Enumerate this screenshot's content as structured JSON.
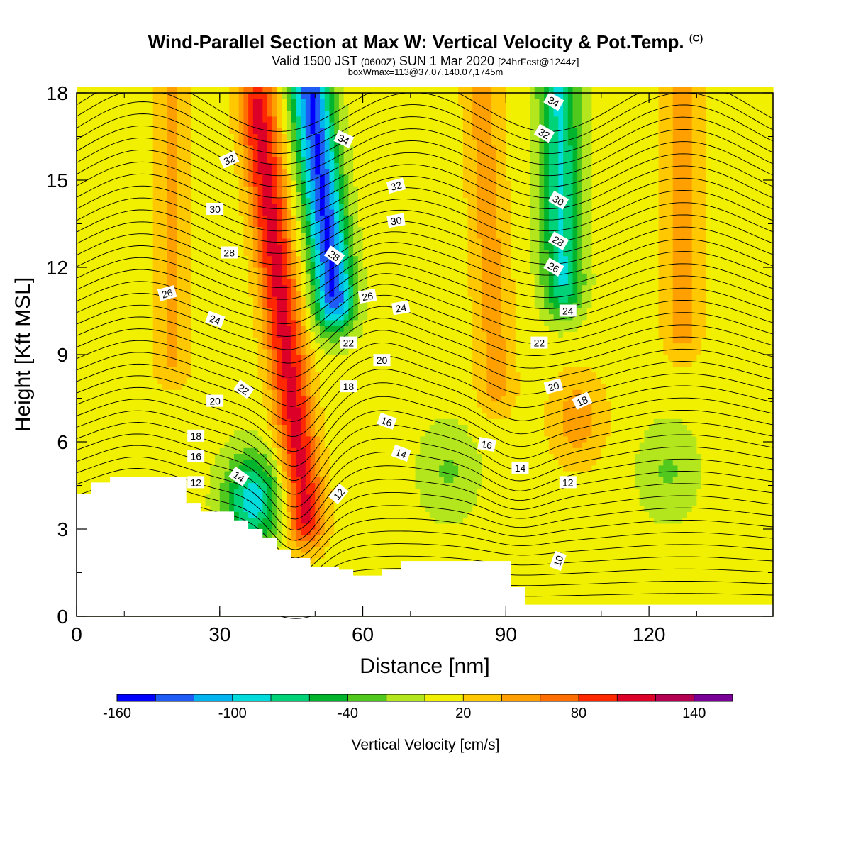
{
  "header": {
    "title": "Wind-Parallel Section at Max W: Vertical Velocity & Pot.Temp.",
    "copyright": "(C)",
    "subtitle_pre": "Valid 1500 JST",
    "subtitle_utc": "(0600Z)",
    "subtitle_mid": "SUN 1 Mar 2020",
    "subtitle_fcst": "[24hrFcst@1244z]",
    "subtitle2": "boxWmax=113@37.07,140.07,1745m"
  },
  "colors": {
    "fill_bins": [
      "#0000ff",
      "#1e5cf5",
      "#00b4f0",
      "#00dcdc",
      "#00d278",
      "#00b42d",
      "#50c81e",
      "#b4e61e",
      "#f0f000",
      "#ffc800",
      "#ffa000",
      "#ff6e00",
      "#ff2800",
      "#dc0028",
      "#b40050",
      "#780096"
    ],
    "terrain": "#ffffff"
  },
  "chart_data": {
    "type": "contour",
    "title": "Wind-Parallel Section at Max W: Vertical Velocity & Pot.Temp.",
    "xlabel": "Distance [nm]",
    "ylabel": "Height [Kft MSL]",
    "xlim": [
      0,
      146
    ],
    "ylim": [
      0,
      18
    ],
    "x_ticks": [
      "0",
      "30",
      "60",
      "90",
      "120"
    ],
    "x_tick_values": [
      0,
      30,
      60,
      90,
      120
    ],
    "y_ticks": [
      "0",
      "3",
      "6",
      "9",
      "12",
      "15",
      "18"
    ],
    "y_tick_values": [
      0,
      3,
      6,
      9,
      12,
      15,
      18
    ],
    "colorbar": {
      "label": "Vertical Velocity [cm/s]",
      "tick_labels": [
        "-160",
        "-100",
        "-40",
        "20",
        "80",
        "140"
      ],
      "tick_values": [
        -160,
        -100,
        -40,
        20,
        80,
        140
      ],
      "bin_edges": [
        -160,
        -140,
        -120,
        -100,
        -80,
        -60,
        -40,
        -20,
        0,
        20,
        40,
        60,
        80,
        100,
        120,
        140,
        160
      ]
    },
    "terrain_profile": [
      {
        "x": 0,
        "y": 4.2
      },
      {
        "x": 3,
        "y": 4.6
      },
      {
        "x": 7,
        "y": 4.8
      },
      {
        "x": 19,
        "y": 4.8
      },
      {
        "x": 23,
        "y": 3.9
      },
      {
        "x": 26,
        "y": 3.6
      },
      {
        "x": 33,
        "y": 3.3
      },
      {
        "x": 36,
        "y": 3.0
      },
      {
        "x": 39,
        "y": 2.7
      },
      {
        "x": 42,
        "y": 2.3
      },
      {
        "x": 45,
        "y": 2.0
      },
      {
        "x": 49,
        "y": 1.7
      },
      {
        "x": 55,
        "y": 1.6
      },
      {
        "x": 58,
        "y": 1.4
      },
      {
        "x": 64,
        "y": 1.6
      },
      {
        "x": 68,
        "y": 1.9
      },
      {
        "x": 88,
        "y": 1.9
      },
      {
        "x": 91,
        "y": 1.0
      },
      {
        "x": 94,
        "y": 0.4
      },
      {
        "x": 146,
        "y": 0.3
      }
    ],
    "w_field": {
      "units": "cm/s",
      "features": [
        {
          "kind": "updraft",
          "x_top": 38,
          "x_bottom": 48,
          "y_top": 17.5,
          "y_bottom": 3.5,
          "peak": 100
        },
        {
          "kind": "downdraft",
          "x_top": 49,
          "x_bottom": 54,
          "y_top": 18,
          "y_bottom": 11,
          "peak": -150
        },
        {
          "kind": "downdraft",
          "x": 37,
          "y": 4.0,
          "peak": -100
        },
        {
          "kind": "downdraft",
          "x_top": 101,
          "x_bottom": 102,
          "y_top": 18,
          "y_bottom": 11.5,
          "peak": -90
        },
        {
          "kind": "downdraft",
          "x": 78,
          "y": 5.0,
          "peak": -30
        },
        {
          "kind": "downdraft",
          "x": 124,
          "y": 5.0,
          "peak": -30
        },
        {
          "kind": "updraft",
          "x_top": 85,
          "x_bottom": 88,
          "y_top": 18,
          "y_bottom": 8,
          "peak": 40
        },
        {
          "kind": "updraft",
          "x_top": 127,
          "x_bottom": 127,
          "y_top": 18,
          "y_bottom": 10,
          "peak": 45
        },
        {
          "kind": "updraft",
          "x_top": 20,
          "x_bottom": 20,
          "y_top": 18,
          "y_bottom": 9,
          "peak": 35
        },
        {
          "kind": "updraft",
          "x": 105,
          "y": 6.8,
          "peak": 45
        }
      ]
    },
    "theta_contours": {
      "units": "C",
      "labeled_values": [
        10,
        12,
        14,
        16,
        18,
        20,
        22,
        24,
        26,
        28,
        30,
        32,
        34
      ]
    }
  }
}
